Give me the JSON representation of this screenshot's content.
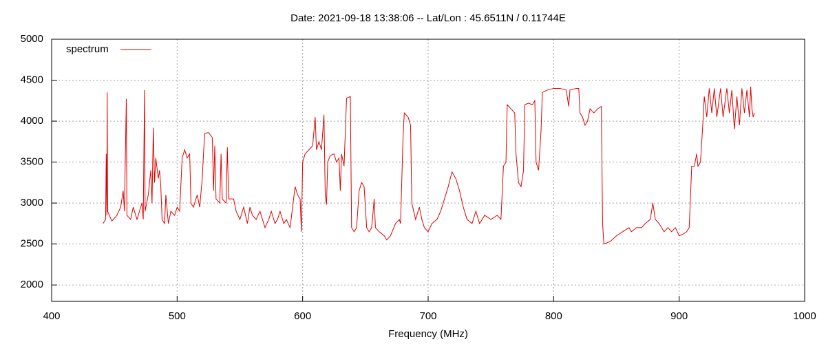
{
  "chart_data": {
    "type": "line",
    "title": "Date: 2021-09-18 13:38:06  --  Lat/Lon : 45.6511N / 0.11744E",
    "x_label": "Frequency (MHz)",
    "xlim": [
      400,
      1000
    ],
    "xticks": [
      400,
      500,
      600,
      700,
      800,
      900,
      1000
    ],
    "ylim": [
      1800,
      5000
    ],
    "yticks": [
      2000,
      2500,
      3000,
      3500,
      4000,
      4500,
      5000
    ],
    "grid": true,
    "legend": "top-left",
    "x": [
      441,
      443,
      443.5,
      444,
      444.3,
      444.6,
      446,
      448,
      452,
      455,
      457,
      458,
      459.5,
      460,
      463,
      465,
      468,
      470,
      472,
      473,
      474,
      474.5,
      477,
      479,
      480,
      481,
      482,
      483,
      485,
      486,
      487,
      488,
      490,
      491,
      493,
      495,
      498,
      500,
      502,
      504,
      506,
      508,
      510,
      511,
      513,
      516,
      518,
      520,
      521,
      522,
      525,
      528,
      529,
      530,
      531,
      534,
      535,
      536,
      539,
      540,
      541,
      545,
      547,
      550,
      553,
      556,
      558,
      560,
      563,
      566,
      570,
      573,
      575,
      578,
      580,
      582,
      585,
      587,
      590,
      592,
      594,
      596,
      598,
      599,
      600,
      602,
      605,
      608,
      610,
      611,
      613,
      615,
      617,
      618,
      619,
      620,
      622,
      625,
      627,
      629,
      630,
      631,
      633,
      635,
      638,
      639,
      641,
      643,
      645,
      647,
      649,
      651,
      653,
      655,
      657,
      658,
      661,
      665,
      667,
      670,
      674,
      677,
      678,
      680,
      681,
      684,
      686,
      687,
      690,
      693,
      695,
      697,
      700,
      703,
      707,
      710,
      713,
      716,
      719,
      722,
      725,
      728,
      731,
      735,
      738,
      741,
      745,
      750,
      755,
      758,
      760,
      762,
      763,
      766,
      769,
      770,
      772,
      774,
      776,
      777,
      780,
      783,
      785,
      786,
      788,
      790,
      791,
      795,
      800,
      805,
      810,
      812,
      813,
      818,
      820,
      821,
      823,
      825,
      827,
      829,
      832,
      835,
      838,
      839,
      840,
      845,
      850,
      855,
      860,
      862,
      866,
      870,
      873,
      877,
      879,
      881,
      884,
      888,
      891,
      894,
      897,
      900,
      903,
      906,
      908,
      910,
      912,
      914,
      915,
      917,
      919,
      920,
      922,
      924,
      926,
      928,
      930,
      933,
      935,
      938,
      940,
      942,
      944,
      946,
      948,
      950,
      952,
      954,
      956,
      957,
      958,
      959,
      960
    ],
    "series": [
      {
        "name": "spectrum",
        "color": "#e00000",
        "values": [
          2750,
          2800,
          3600,
          2850,
          4350,
          2900,
          2850,
          2780,
          2850,
          2950,
          3150,
          2900,
          4270,
          2850,
          2800,
          2950,
          2800,
          2900,
          3000,
          2800,
          4380,
          2900,
          3100,
          3400,
          3000,
          3920,
          3250,
          3550,
          3300,
          3400,
          3200,
          2800,
          2750,
          3100,
          2750,
          2900,
          2850,
          2950,
          2900,
          3550,
          3650,
          3550,
          3600,
          3000,
          2950,
          3100,
          2950,
          3300,
          3600,
          3850,
          3860,
          3800,
          3150,
          3700,
          3050,
          3000,
          3600,
          3050,
          3000,
          3680,
          3050,
          3050,
          2900,
          2800,
          2950,
          2750,
          2950,
          2850,
          2800,
          2900,
          2700,
          2800,
          2900,
          2750,
          2800,
          2900,
          2750,
          2800,
          2700,
          2950,
          3200,
          3100,
          3050,
          2650,
          3500,
          3600,
          3650,
          3700,
          4050,
          3650,
          3750,
          3650,
          4080,
          3100,
          2980,
          3500,
          3580,
          3600,
          3500,
          3550,
          3150,
          3600,
          3450,
          4280,
          4300,
          2700,
          2650,
          2700,
          3150,
          3250,
          3200,
          2700,
          2650,
          2700,
          3050,
          2700,
          2650,
          2600,
          2550,
          2600,
          2750,
          2800,
          2750,
          3800,
          4100,
          4050,
          3950,
          3000,
          2800,
          2950,
          2800,
          2700,
          2650,
          2750,
          2800,
          2900,
          3050,
          3200,
          3380,
          3300,
          3150,
          2950,
          2800,
          2750,
          2900,
          2750,
          2850,
          2800,
          2850,
          2800,
          3450,
          3500,
          4200,
          4150,
          4100,
          3600,
          3250,
          3200,
          3400,
          4200,
          4220,
          4200,
          4250,
          3500,
          3400,
          3900,
          4350,
          4380,
          4400,
          4400,
          4380,
          4180,
          4380,
          4400,
          4400,
          4100,
          4050,
          3950,
          4000,
          4150,
          4100,
          4150,
          4180,
          2750,
          2500,
          2530,
          2600,
          2650,
          2700,
          2650,
          2700,
          2700,
          2750,
          2800,
          3000,
          2800,
          2750,
          2650,
          2700,
          2650,
          2700,
          2600,
          2620,
          2650,
          2700,
          3450,
          3450,
          3600,
          3450,
          3500,
          4000,
          4300,
          4050,
          4400,
          4100,
          4400,
          4050,
          4400,
          4050,
          4400,
          4100,
          4380,
          3900,
          4300,
          3950,
          4400,
          4100,
          4380,
          4050,
          4420,
          4150,
          4050,
          4100
        ]
      }
    ]
  }
}
